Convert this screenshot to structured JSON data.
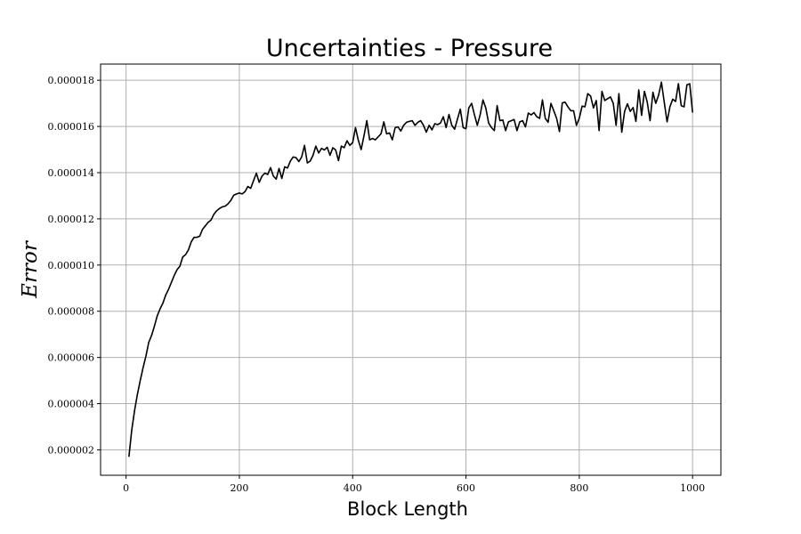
{
  "chart_data": {
    "type": "line",
    "title": "Uncertainties - Pressure",
    "xlabel": "Block Length",
    "ylabel": "Error",
    "xlim": [
      -45,
      1050
    ],
    "ylim": [
      9e-07,
      1.87e-05
    ],
    "grid": true,
    "xticks": [
      0,
      200,
      400,
      600,
      800,
      1000
    ],
    "xtick_labels": [
      "0",
      "200",
      "400",
      "600",
      "800",
      "1000"
    ],
    "yticks": [
      2e-06,
      4e-06,
      6e-06,
      8e-06,
      1e-05,
      1.2e-05,
      1.4e-05,
      1.6e-05,
      1.8e-05
    ],
    "ytick_labels": [
      "0.000002",
      "0.000004",
      "0.000006",
      "0.000008",
      "0.000010",
      "0.000012",
      "0.000014",
      "0.000016",
      "0.000018"
    ],
    "series": [
      {
        "color": "#000000",
        "x": [
          5,
          10,
          15,
          20,
          25,
          30,
          35,
          40,
          45,
          50,
          55,
          60,
          65,
          70,
          75,
          80,
          85,
          90,
          95,
          100,
          105,
          110,
          115,
          120,
          125,
          130,
          135,
          140,
          145,
          150,
          155,
          160,
          165,
          170,
          175,
          180,
          185,
          190,
          195,
          200,
          205,
          210,
          215,
          220,
          225,
          230,
          235,
          240,
          245,
          250,
          255,
          260,
          265,
          270,
          275,
          280,
          285,
          290,
          295,
          300,
          305,
          310,
          315,
          320,
          325,
          330,
          335,
          340,
          345,
          350,
          355,
          360,
          365,
          370,
          375,
          380,
          385,
          390,
          395,
          400,
          405,
          410,
          415,
          420,
          425,
          430,
          435,
          440,
          445,
          450,
          455,
          460,
          465,
          470,
          475,
          480,
          485,
          490,
          495,
          500,
          505,
          510,
          515,
          520,
          525,
          530,
          535,
          540,
          545,
          550,
          555,
          560,
          565,
          570,
          575,
          580,
          585,
          590,
          595,
          600,
          605,
          610,
          615,
          620,
          625,
          630,
          635,
          640,
          645,
          650,
          655,
          660,
          665,
          670,
          675,
          680,
          685,
          690,
          695,
          700,
          705,
          710,
          715,
          720,
          725,
          730,
          735,
          740,
          745,
          750,
          755,
          760,
          765,
          770,
          775,
          780,
          785,
          790,
          795,
          800,
          805,
          810,
          815,
          820,
          825,
          830,
          835,
          840,
          845,
          850,
          855,
          860,
          865,
          870,
          875,
          880,
          885,
          890,
          895,
          900,
          905,
          910,
          915,
          920,
          925,
          930,
          935,
          940,
          945,
          950,
          955,
          960,
          965,
          970,
          975,
          980,
          985,
          990,
          995,
          1000
        ],
        "y": [
          1.7e-06,
          2.85e-06,
          3.7e-06,
          4.4e-06,
          5e-06,
          5.55e-06,
          6.05e-06,
          6.65e-06,
          6.95e-06,
          7.35e-06,
          7.8e-06,
          8.1e-06,
          8.35e-06,
          8.7e-06,
          8.95e-06,
          9.25e-06,
          9.55e-06,
          9.8e-06,
          9.95e-06,
          1.035e-05,
          1.045e-05,
          1.065e-05,
          1.1e-05,
          1.12e-05,
          1.12e-05,
          1.125e-05,
          1.155e-05,
          1.17e-05,
          1.185e-05,
          1.195e-05,
          1.22e-05,
          1.235e-05,
          1.245e-05,
          1.252e-05,
          1.255e-05,
          1.265e-05,
          1.28e-05,
          1.302e-05,
          1.308e-05,
          1.312e-05,
          1.308e-05,
          1.318e-05,
          1.34e-05,
          1.332e-05,
          1.365e-05,
          1.398e-05,
          1.358e-05,
          1.385e-05,
          1.398e-05,
          1.392e-05,
          1.422e-05,
          1.385e-05,
          1.372e-05,
          1.418e-05,
          1.375e-05,
          1.425e-05,
          1.42e-05,
          1.45e-05,
          1.468e-05,
          1.465e-05,
          1.448e-05,
          1.468e-05,
          1.518e-05,
          1.442e-05,
          1.45e-05,
          1.475e-05,
          1.515e-05,
          1.485e-05,
          1.505e-05,
          1.498e-05,
          1.51e-05,
          1.475e-05,
          1.508e-05,
          1.498e-05,
          1.452e-05,
          1.515e-05,
          1.508e-05,
          1.538e-05,
          1.518e-05,
          1.53e-05,
          1.595e-05,
          1.54e-05,
          1.5e-05,
          1.56e-05,
          1.625e-05,
          1.542e-05,
          1.548e-05,
          1.542e-05,
          1.555e-05,
          1.568e-05,
          1.62e-05,
          1.568e-05,
          1.572e-05,
          1.542e-05,
          1.595e-05,
          1.598e-05,
          1.58e-05,
          1.605e-05,
          1.618e-05,
          1.622e-05,
          1.625e-05,
          1.605e-05,
          1.618e-05,
          1.625e-05,
          1.605e-05,
          1.575e-05,
          1.605e-05,
          1.585e-05,
          1.612e-05,
          1.608e-05,
          1.615e-05,
          1.642e-05,
          1.595e-05,
          1.652e-05,
          1.605e-05,
          1.588e-05,
          1.632e-05,
          1.675e-05,
          1.595e-05,
          1.59e-05,
          1.68e-05,
          1.7e-05,
          1.65e-05,
          1.605e-05,
          1.65e-05,
          1.715e-05,
          1.68e-05,
          1.615e-05,
          1.595e-05,
          1.582e-05,
          1.69e-05,
          1.625e-05,
          1.628e-05,
          1.582e-05,
          1.62e-05,
          1.625e-05,
          1.63e-05,
          1.582e-05,
          1.62e-05,
          1.625e-05,
          1.598e-05,
          1.658e-05,
          1.65e-05,
          1.66e-05,
          1.642e-05,
          1.635e-05,
          1.715e-05,
          1.635e-05,
          1.618e-05,
          1.7e-05,
          1.668e-05,
          1.635e-05,
          1.578e-05,
          1.702e-05,
          1.705e-05,
          1.685e-05,
          1.668e-05,
          1.668e-05,
          1.605e-05,
          1.635e-05,
          1.688e-05,
          1.685e-05,
          1.742e-05,
          1.732e-05,
          1.68e-05,
          1.712e-05,
          1.582e-05,
          1.752e-05,
          1.712e-05,
          1.72e-05,
          1.728e-05,
          1.7e-05,
          1.605e-05,
          1.742e-05,
          1.575e-05,
          1.665e-05,
          1.698e-05,
          1.665e-05,
          1.682e-05,
          1.622e-05,
          1.758e-05,
          1.648e-05,
          1.752e-05,
          1.705e-05,
          1.625e-05,
          1.748e-05,
          1.7e-05,
          1.735e-05,
          1.792e-05,
          1.705e-05,
          1.62e-05,
          1.685e-05,
          1.718e-05,
          1.708e-05,
          1.785e-05,
          1.69e-05,
          1.685e-05,
          1.78e-05,
          1.785e-05,
          1.66e-05
        ]
      }
    ]
  }
}
